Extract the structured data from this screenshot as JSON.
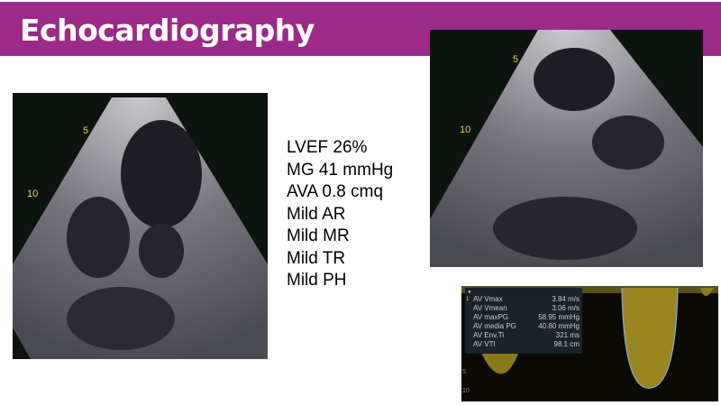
{
  "slide": {
    "title": "Echocardiography"
  },
  "findings": [
    "LVEF 26%",
    "MG 41 mmHg",
    "AVA 0.8 cmq",
    "Mild AR",
    "Mild MR",
    "Mild TR",
    "Mild PH"
  ],
  "left_echo": {
    "depth_marks": [
      "5",
      "10"
    ]
  },
  "right_echo": {
    "depth_marks": [
      "5",
      "10"
    ]
  },
  "doppler": {
    "row_index": "1",
    "measurements": [
      {
        "label": "AV Vmax",
        "value": "3.84 m/s"
      },
      {
        "label": "AV Vmean",
        "value": "3.06 m/s"
      },
      {
        "label": "AV maxPG",
        "value": "58.95 mmHg"
      },
      {
        "label": "AV media PG",
        "value": "40.80 mmHg"
      },
      {
        "label": "AV Env.Ti",
        "value": "321 ms"
      },
      {
        "label": "AV VTI",
        "value": "98.1 cm"
      }
    ],
    "depth_marks": [
      "5",
      "10"
    ]
  },
  "colors": {
    "header": "#9b2a88",
    "doppler": "#d9c22e",
    "trace": "#8fa6d8"
  }
}
